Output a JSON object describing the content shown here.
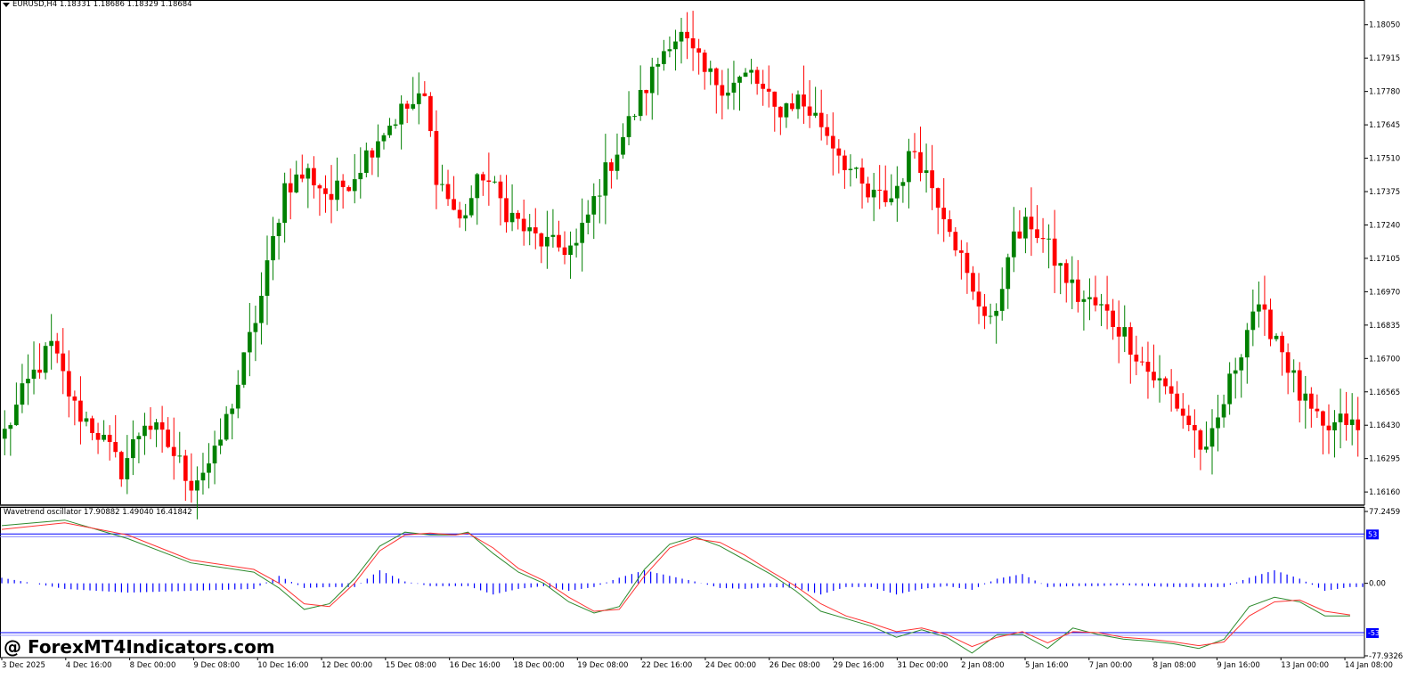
{
  "header": {
    "symbol": "EURUSD,H4",
    "ohlc": "1.18331 1.18686 1.18329 1.18684"
  },
  "oscillator": {
    "label": "Wavetrend oscillator",
    "values": "17.90882 1.49040 16.41842",
    "scale_top": "77.2459",
    "scale_mid": "0.00",
    "scale_bottom": "-77.9326",
    "level_top": "53",
    "level_bottom": "-53"
  },
  "watermark": "@ ForexMT4Indicators.com",
  "colors": {
    "bull": "#008000",
    "bear": "#ff0000",
    "wt1": "#2e8b2e",
    "wt2": "#ff3333",
    "histogram": "#0000ff",
    "levels": "#0000ff"
  },
  "chart_data": [
    {
      "type": "candlestick",
      "title": "EURUSD,H4",
      "y_ticks": [
        "1.18050",
        "1.17915",
        "1.17780",
        "1.17645",
        "1.17510",
        "1.17375",
        "1.17240",
        "1.17105",
        "1.16970",
        "1.16835",
        "1.16700",
        "1.16565",
        "1.16430",
        "1.16295",
        "1.16160"
      ],
      "ylim": [
        1.1611,
        1.1815
      ],
      "x_tick_labels": [
        "3 Dec 2025",
        "4 Dec 16:00",
        "8 Dec 00:00",
        "9 Dec 08:00",
        "10 Dec 16:00",
        "12 Dec 00:00",
        "15 Dec 08:00",
        "16 Dec 16:00",
        "18 Dec 00:00",
        "19 Dec 08:00",
        "22 Dec 16:00",
        "24 Dec 00:00",
        "26 Dec 08:00",
        "29 Dec 16:00",
        "31 Dec 00:00",
        "2 Jan 08:00",
        "5 Jan 16:00",
        "7 Jan 00:00",
        "8 Jan 08:00",
        "9 Jan 16:00",
        "13 Jan 00:00",
        "14 Jan 08:00"
      ],
      "keypoints": [
        [
          0,
          1.164
        ],
        [
          4,
          1.166
        ],
        [
          8,
          1.1675
        ],
        [
          12,
          1.165
        ],
        [
          16,
          1.164
        ],
        [
          20,
          1.1625
        ],
        [
          24,
          1.1645
        ],
        [
          28,
          1.1635
        ],
        [
          32,
          1.162
        ],
        [
          36,
          1.163
        ],
        [
          40,
          1.166
        ],
        [
          44,
          1.1695
        ],
        [
          48,
          1.174
        ],
        [
          52,
          1.1745
        ],
        [
          56,
          1.1735
        ],
        [
          60,
          1.1745
        ],
        [
          64,
          1.176
        ],
        [
          68,
          1.177
        ],
        [
          72,
          1.1775
        ],
        [
          74,
          1.1745
        ],
        [
          78,
          1.1725
        ],
        [
          82,
          1.1745
        ],
        [
          86,
          1.173
        ],
        [
          90,
          1.172
        ],
        [
          94,
          1.1715
        ],
        [
          98,
          1.1715
        ],
        [
          102,
          1.174
        ],
        [
          106,
          1.176
        ],
        [
          110,
          1.178
        ],
        [
          114,
          1.18
        ],
        [
          116,
          1.18
        ],
        [
          120,
          1.1785
        ],
        [
          124,
          1.178
        ],
        [
          128,
          1.1785
        ],
        [
          132,
          1.177
        ],
        [
          136,
          1.1775
        ],
        [
          140,
          1.1765
        ],
        [
          144,
          1.175
        ],
        [
          148,
          1.1735
        ],
        [
          152,
          1.1735
        ],
        [
          156,
          1.1755
        ],
        [
          158,
          1.1745
        ],
        [
          162,
          1.1725
        ],
        [
          166,
          1.1695
        ],
        [
          170,
          1.1685
        ],
        [
          172,
          1.1715
        ],
        [
          176,
          1.1725
        ],
        [
          180,
          1.171
        ],
        [
          184,
          1.1695
        ],
        [
          188,
          1.169
        ],
        [
          192,
          1.168
        ],
        [
          196,
          1.1665
        ],
        [
          200,
          1.1655
        ],
        [
          204,
          1.164
        ],
        [
          206,
          1.163
        ],
        [
          210,
          1.166
        ],
        [
          214,
          1.169
        ],
        [
          218,
          1.168
        ],
        [
          222,
          1.1655
        ],
        [
          226,
          1.164
        ],
        [
          230,
          1.1645
        ],
        [
          232,
          1.164
        ]
      ]
    },
    {
      "type": "line",
      "title": "Wavetrend oscillator",
      "series": [
        {
          "name": "",
          "values": [
            [
              0,
              62
            ],
            [
              10,
              68
            ],
            [
              20,
              48
            ],
            [
              30,
              22
            ],
            [
              40,
              12
            ],
            [
              44,
              -5
            ],
            [
              48,
              -28
            ],
            [
              52,
              -22
            ],
            [
              56,
              5
            ],
            [
              60,
              40
            ],
            [
              64,
              55
            ],
            [
              68,
              52
            ],
            [
              72,
              52
            ],
            [
              74,
              55
            ],
            [
              78,
              32
            ],
            [
              82,
              12
            ],
            [
              86,
              0
            ],
            [
              90,
              -20
            ],
            [
              94,
              -32
            ],
            [
              98,
              -25
            ],
            [
              102,
              15
            ],
            [
              106,
              42
            ],
            [
              110,
              50
            ],
            [
              114,
              40
            ],
            [
              118,
              25
            ],
            [
              122,
              10
            ],
            [
              126,
              -8
            ],
            [
              130,
              -30
            ],
            [
              134,
              -38
            ],
            [
              138,
              -46
            ],
            [
              142,
              -58
            ],
            [
              146,
              -50
            ],
            [
              150,
              -58
            ],
            [
              154,
              -75
            ],
            [
              158,
              -55
            ],
            [
              162,
              -55
            ],
            [
              166,
              -70
            ],
            [
              170,
              -48
            ],
            [
              174,
              -55
            ],
            [
              178,
              -60
            ],
            [
              182,
              -62
            ],
            [
              186,
              -65
            ],
            [
              190,
              -70
            ],
            [
              194,
              -60
            ],
            [
              198,
              -25
            ],
            [
              202,
              -15
            ],
            [
              206,
              -20
            ],
            [
              210,
              -35
            ],
            [
              214,
              -35
            ]
          ]
        },
        {
          "name": "",
          "values": [
            [
              0,
              58
            ],
            [
              10,
              65
            ],
            [
              20,
              52
            ],
            [
              30,
              25
            ],
            [
              40,
              15
            ],
            [
              44,
              0
            ],
            [
              48,
              -22
            ],
            [
              52,
              -25
            ],
            [
              56,
              0
            ],
            [
              60,
              35
            ],
            [
              64,
              52
            ],
            [
              68,
              54
            ],
            [
              72,
              52
            ],
            [
              74,
              54
            ],
            [
              78,
              38
            ],
            [
              82,
              16
            ],
            [
              86,
              3
            ],
            [
              90,
              -15
            ],
            [
              94,
              -30
            ],
            [
              98,
              -28
            ],
            [
              102,
              8
            ],
            [
              106,
              38
            ],
            [
              110,
              48
            ],
            [
              114,
              44
            ],
            [
              118,
              30
            ],
            [
              122,
              13
            ],
            [
              126,
              -3
            ],
            [
              130,
              -22
            ],
            [
              134,
              -35
            ],
            [
              138,
              -43
            ],
            [
              142,
              -52
            ],
            [
              146,
              -48
            ],
            [
              150,
              -55
            ],
            [
              154,
              -68
            ],
            [
              158,
              -58
            ],
            [
              162,
              -52
            ],
            [
              166,
              -64
            ],
            [
              170,
              -52
            ],
            [
              174,
              -53
            ],
            [
              178,
              -58
            ],
            [
              182,
              -60
            ],
            [
              186,
              -63
            ],
            [
              190,
              -67
            ],
            [
              194,
              -63
            ],
            [
              198,
              -35
            ],
            [
              202,
              -20
            ],
            [
              206,
              -18
            ],
            [
              210,
              -30
            ],
            [
              214,
              -34
            ]
          ]
        }
      ],
      "histogram_keypoints": [
        [
          0,
          6
        ],
        [
          10,
          -6
        ],
        [
          20,
          -10
        ],
        [
          30,
          -8
        ],
        [
          40,
          -6
        ],
        [
          44,
          8
        ],
        [
          48,
          -5
        ],
        [
          52,
          -4
        ],
        [
          56,
          -4
        ],
        [
          60,
          14
        ],
        [
          64,
          2
        ],
        [
          68,
          -3
        ],
        [
          72,
          -3
        ],
        [
          74,
          -3
        ],
        [
          78,
          -12
        ],
        [
          82,
          -6
        ],
        [
          86,
          -3
        ],
        [
          90,
          -8
        ],
        [
          94,
          -4
        ],
        [
          98,
          6
        ],
        [
          102,
          14
        ],
        [
          106,
          8
        ],
        [
          110,
          2
        ],
        [
          114,
          -5
        ],
        [
          118,
          -6
        ],
        [
          122,
          -4
        ],
        [
          126,
          -5
        ],
        [
          130,
          -12
        ],
        [
          134,
          -4
        ],
        [
          138,
          -4
        ],
        [
          142,
          -12
        ],
        [
          146,
          -6
        ],
        [
          150,
          -3
        ],
        [
          154,
          -7
        ],
        [
          158,
          5
        ],
        [
          162,
          10
        ],
        [
          166,
          -4
        ],
        [
          170,
          -3
        ],
        [
          174,
          -3
        ],
        [
          178,
          -2
        ],
        [
          182,
          -3
        ],
        [
          186,
          -4
        ],
        [
          190,
          -4
        ],
        [
          194,
          -4
        ],
        [
          198,
          6
        ],
        [
          202,
          14
        ],
        [
          206,
          5
        ],
        [
          210,
          -8
        ],
        [
          214,
          -4
        ]
      ],
      "levels": [
        53,
        -53
      ],
      "ylim": [
        -77.9326,
        77.2459
      ]
    }
  ]
}
